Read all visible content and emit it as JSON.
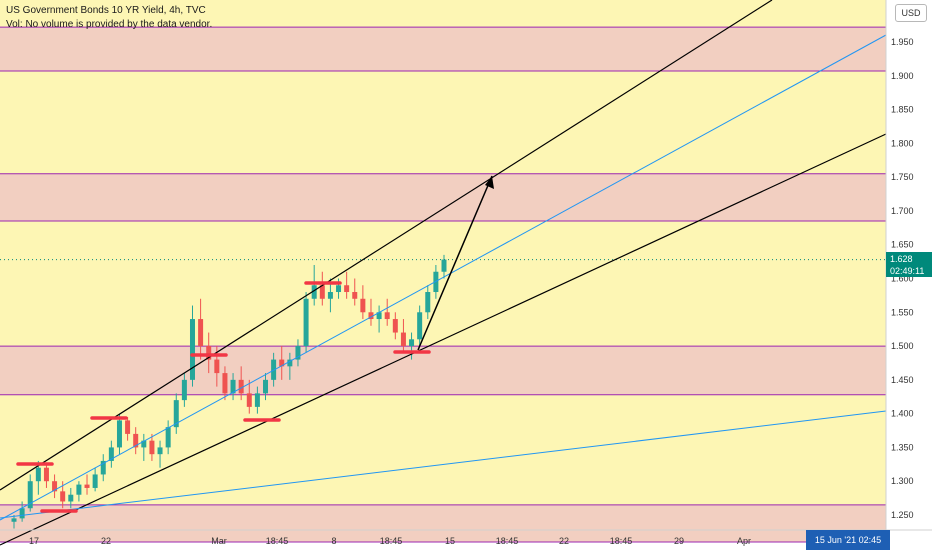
{
  "header": {
    "title": "US Government Bonds 10 YR Yield, 4h, TVC",
    "volume_note": "Vol: No volume is provided by the data vendor."
  },
  "currency_button": "USD",
  "price_label": {
    "value": "1.628",
    "countdown": "02:49:11"
  },
  "date_label": {
    "date": "15 Jun '21",
    "time": "02:45"
  },
  "colors": {
    "background": "#fdf6b4",
    "zone_fill": "#f2cfc1",
    "zone_border": "#9c27b0",
    "channel_line": "#000000",
    "trend_line": "#2196f3",
    "marker": "#f23645",
    "candle_up": "#26a69a",
    "candle_down": "#ef5350",
    "price_tag": "#00897b",
    "date_tag": "#1e5fb4"
  },
  "chart_data": {
    "type": "candlestick",
    "title": "US Government Bonds 10 YR Yield, 4h, TVC",
    "y_axis": {
      "position": "right",
      "ticks": [
        "1.250",
        "1.300",
        "1.350",
        "1.400",
        "1.450",
        "1.500",
        "1.550",
        "1.600",
        "1.650",
        "1.700",
        "1.750",
        "1.800",
        "1.850",
        "1.900",
        "1.950"
      ],
      "range": [
        1.21,
        1.98
      ]
    },
    "x_axis": {
      "ticks": [
        "17",
        "22",
        "Mar",
        "18:45",
        "8",
        "18:45",
        "15",
        "18:45",
        "22",
        "18:45",
        "29",
        "Apr"
      ]
    },
    "current_price": 1.628,
    "zones": [
      {
        "low": 1.907,
        "high": 1.972
      },
      {
        "low": 1.685,
        "high": 1.755
      },
      {
        "low": 1.428,
        "high": 1.5
      },
      {
        "low": 1.21,
        "high": 1.265
      }
    ],
    "candles_ohlc": [
      [
        1.24,
        1.25,
        1.23,
        1.245
      ],
      [
        1.245,
        1.27,
        1.24,
        1.26
      ],
      [
        1.26,
        1.31,
        1.255,
        1.3
      ],
      [
        1.3,
        1.33,
        1.28,
        1.32
      ],
      [
        1.32,
        1.325,
        1.29,
        1.3
      ],
      [
        1.3,
        1.31,
        1.275,
        1.285
      ],
      [
        1.285,
        1.3,
        1.26,
        1.27
      ],
      [
        1.27,
        1.29,
        1.26,
        1.28
      ],
      [
        1.28,
        1.3,
        1.27,
        1.295
      ],
      [
        1.295,
        1.31,
        1.28,
        1.29
      ],
      [
        1.29,
        1.32,
        1.285,
        1.31
      ],
      [
        1.31,
        1.34,
        1.3,
        1.33
      ],
      [
        1.33,
        1.36,
        1.32,
        1.35
      ],
      [
        1.35,
        1.4,
        1.34,
        1.39
      ],
      [
        1.39,
        1.395,
        1.36,
        1.37
      ],
      [
        1.37,
        1.38,
        1.34,
        1.35
      ],
      [
        1.35,
        1.37,
        1.33,
        1.36
      ],
      [
        1.36,
        1.37,
        1.33,
        1.34
      ],
      [
        1.34,
        1.36,
        1.32,
        1.35
      ],
      [
        1.35,
        1.39,
        1.34,
        1.38
      ],
      [
        1.38,
        1.43,
        1.37,
        1.42
      ],
      [
        1.42,
        1.46,
        1.41,
        1.45
      ],
      [
        1.45,
        1.56,
        1.44,
        1.54
      ],
      [
        1.54,
        1.57,
        1.48,
        1.5
      ],
      [
        1.5,
        1.52,
        1.46,
        1.48
      ],
      [
        1.48,
        1.5,
        1.44,
        1.46
      ],
      [
        1.46,
        1.47,
        1.42,
        1.43
      ],
      [
        1.43,
        1.46,
        1.42,
        1.45
      ],
      [
        1.45,
        1.47,
        1.42,
        1.43
      ],
      [
        1.43,
        1.45,
        1.4,
        1.41
      ],
      [
        1.41,
        1.44,
        1.4,
        1.43
      ],
      [
        1.43,
        1.46,
        1.42,
        1.45
      ],
      [
        1.45,
        1.49,
        1.44,
        1.48
      ],
      [
        1.48,
        1.5,
        1.45,
        1.47
      ],
      [
        1.47,
        1.49,
        1.45,
        1.48
      ],
      [
        1.48,
        1.51,
        1.47,
        1.5
      ],
      [
        1.5,
        1.58,
        1.49,
        1.57
      ],
      [
        1.57,
        1.62,
        1.56,
        1.59
      ],
      [
        1.59,
        1.61,
        1.56,
        1.57
      ],
      [
        1.57,
        1.6,
        1.55,
        1.58
      ],
      [
        1.58,
        1.6,
        1.57,
        1.59
      ],
      [
        1.59,
        1.61,
        1.57,
        1.58
      ],
      [
        1.58,
        1.6,
        1.56,
        1.57
      ],
      [
        1.57,
        1.59,
        1.54,
        1.55
      ],
      [
        1.55,
        1.57,
        1.53,
        1.54
      ],
      [
        1.54,
        1.56,
        1.52,
        1.55
      ],
      [
        1.55,
        1.57,
        1.53,
        1.54
      ],
      [
        1.54,
        1.55,
        1.51,
        1.52
      ],
      [
        1.52,
        1.54,
        1.49,
        1.5
      ],
      [
        1.5,
        1.52,
        1.48,
        1.51
      ],
      [
        1.51,
        1.56,
        1.5,
        1.55
      ],
      [
        1.55,
        1.59,
        1.54,
        1.58
      ],
      [
        1.58,
        1.62,
        1.57,
        1.61
      ],
      [
        1.61,
        1.635,
        1.6,
        1.628
      ]
    ]
  }
}
